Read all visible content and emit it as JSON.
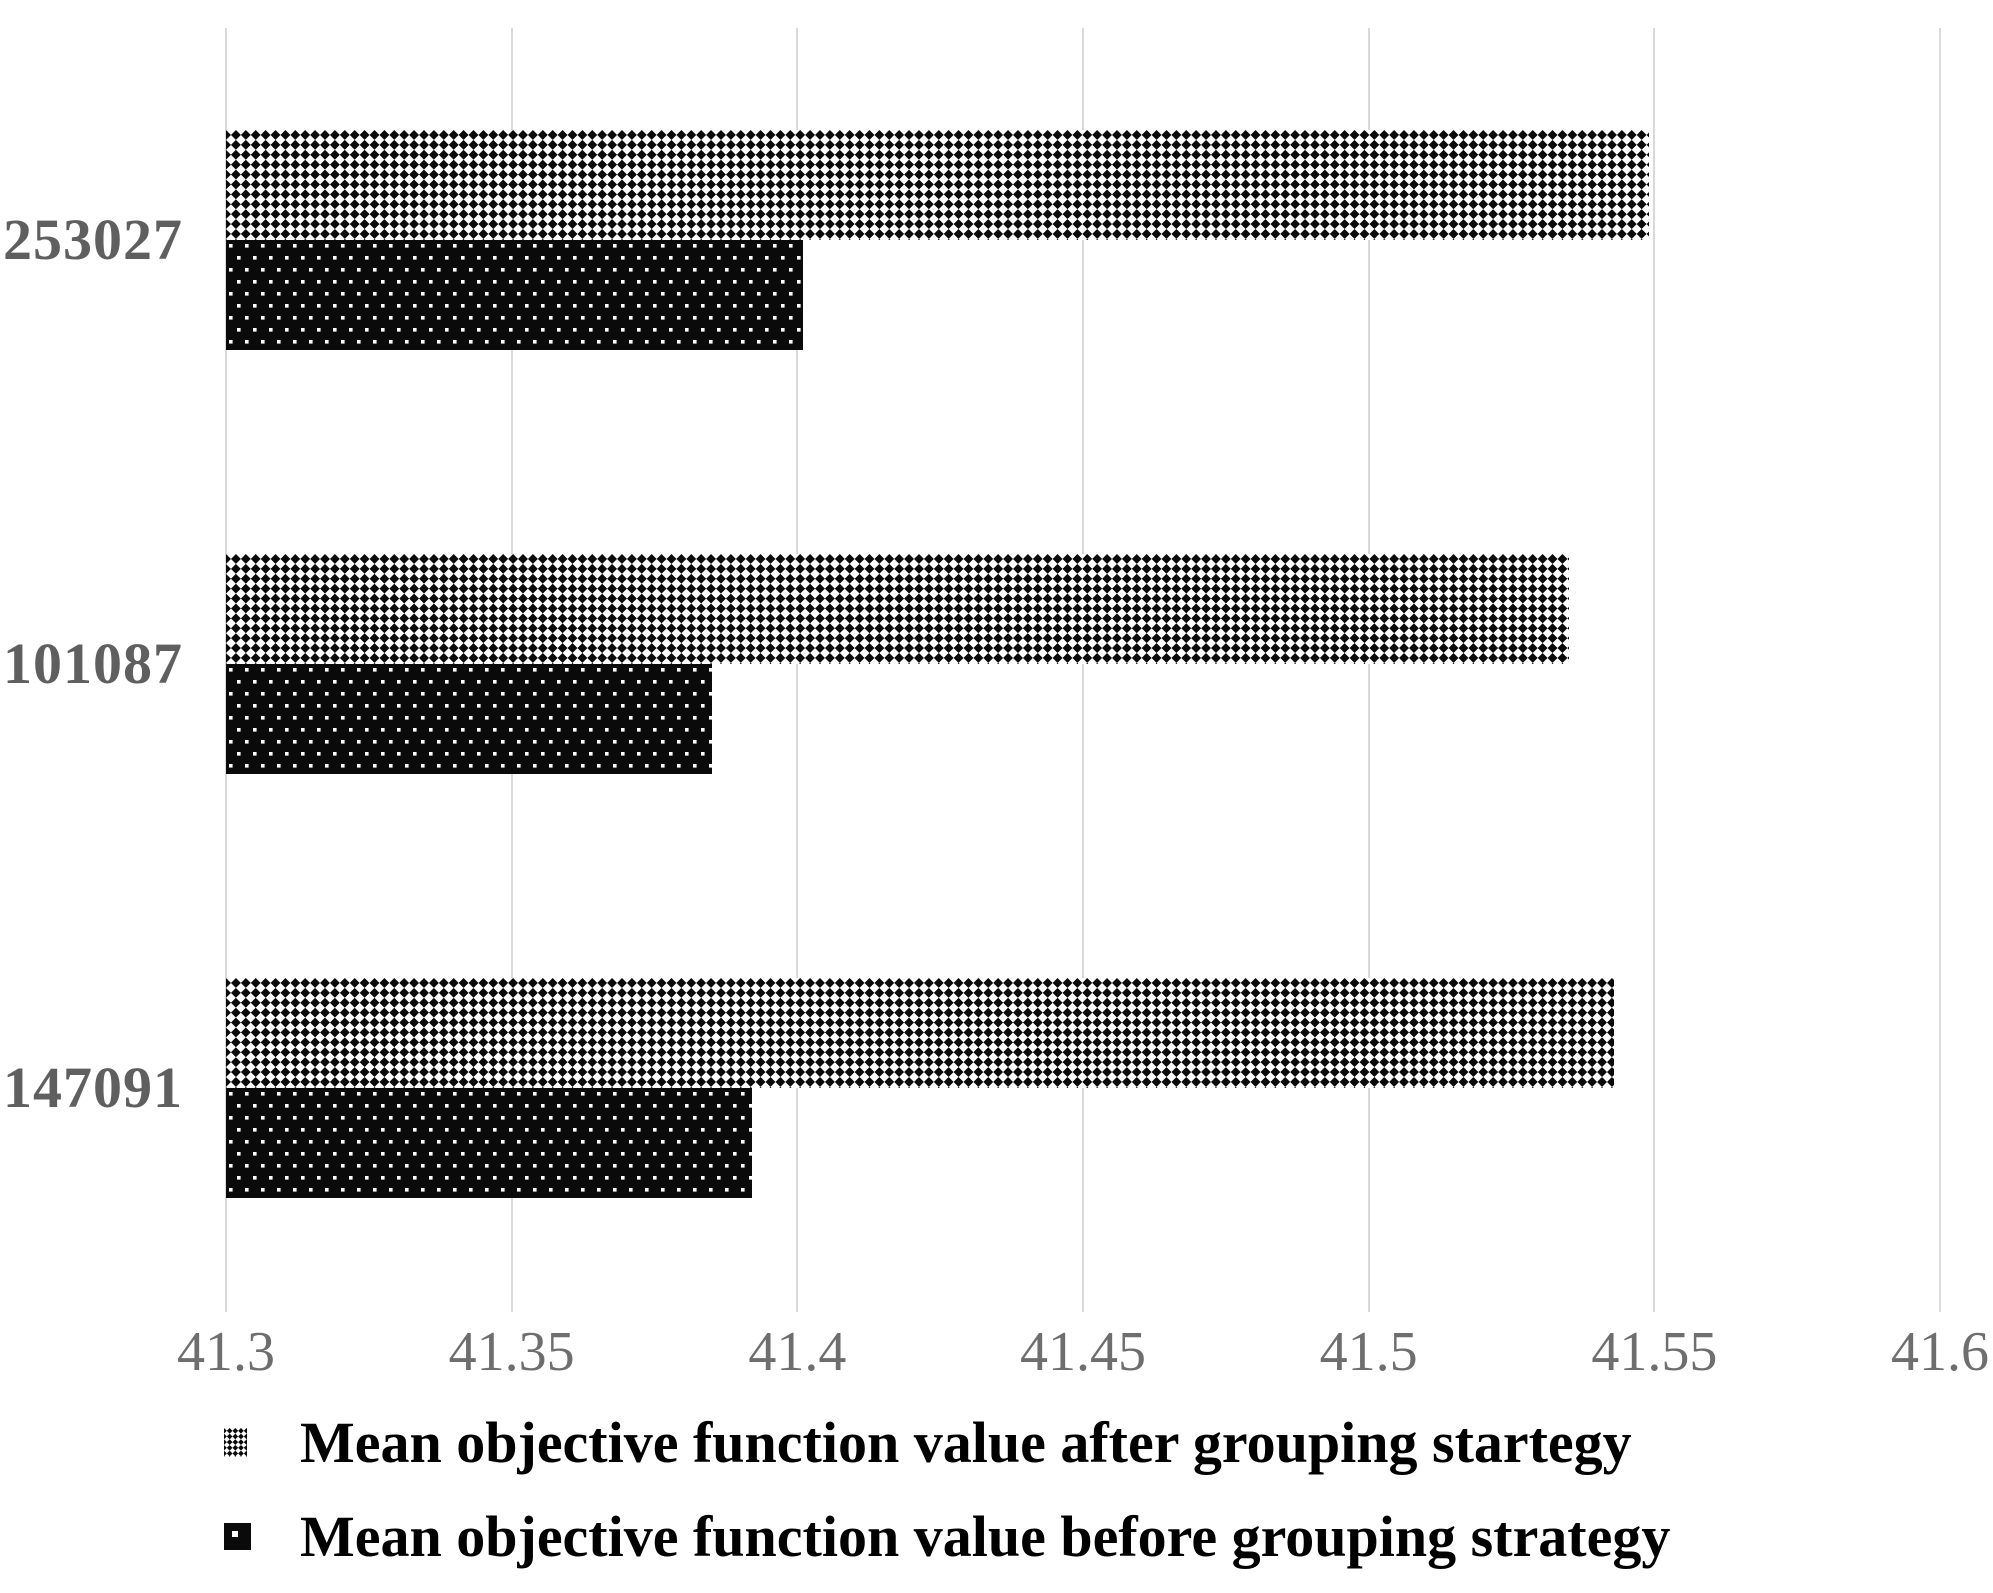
{
  "chart_data": {
    "type": "bar",
    "orientation": "horizontal",
    "title": "",
    "xlabel": "",
    "ylabel": "",
    "categories": [
      "253027",
      "101087",
      "147091"
    ],
    "series": [
      {
        "name": "Mean objective function value after grouping startegy",
        "pattern": "diagonal-checker",
        "values": [
          41.549,
          41.535,
          41.543
        ]
      },
      {
        "name": "Mean objective function value before grouping strategy",
        "pattern": "black-white-dots",
        "values": [
          41.401,
          41.385,
          41.392
        ]
      }
    ],
    "xlim": [
      41.3,
      41.6
    ],
    "xticks": [
      41.3,
      41.35,
      41.4,
      41.45,
      41.5,
      41.55,
      41.6
    ],
    "xtick_labels": [
      "41.3",
      "41.35",
      "41.4",
      "41.45",
      "41.5",
      "41.55",
      "41.6"
    ],
    "grid": "vertical-gridlines-on",
    "legend_position": "bottom-left",
    "colors": {
      "bar_fill": "#0a0a0a",
      "pattern_background": "#ffffff",
      "gridline": "#d9d9d9",
      "tick_label": "#6e6e6e",
      "category_label": "#5f5f5f",
      "legend_text": "#000000",
      "background": "#ffffff"
    }
  }
}
